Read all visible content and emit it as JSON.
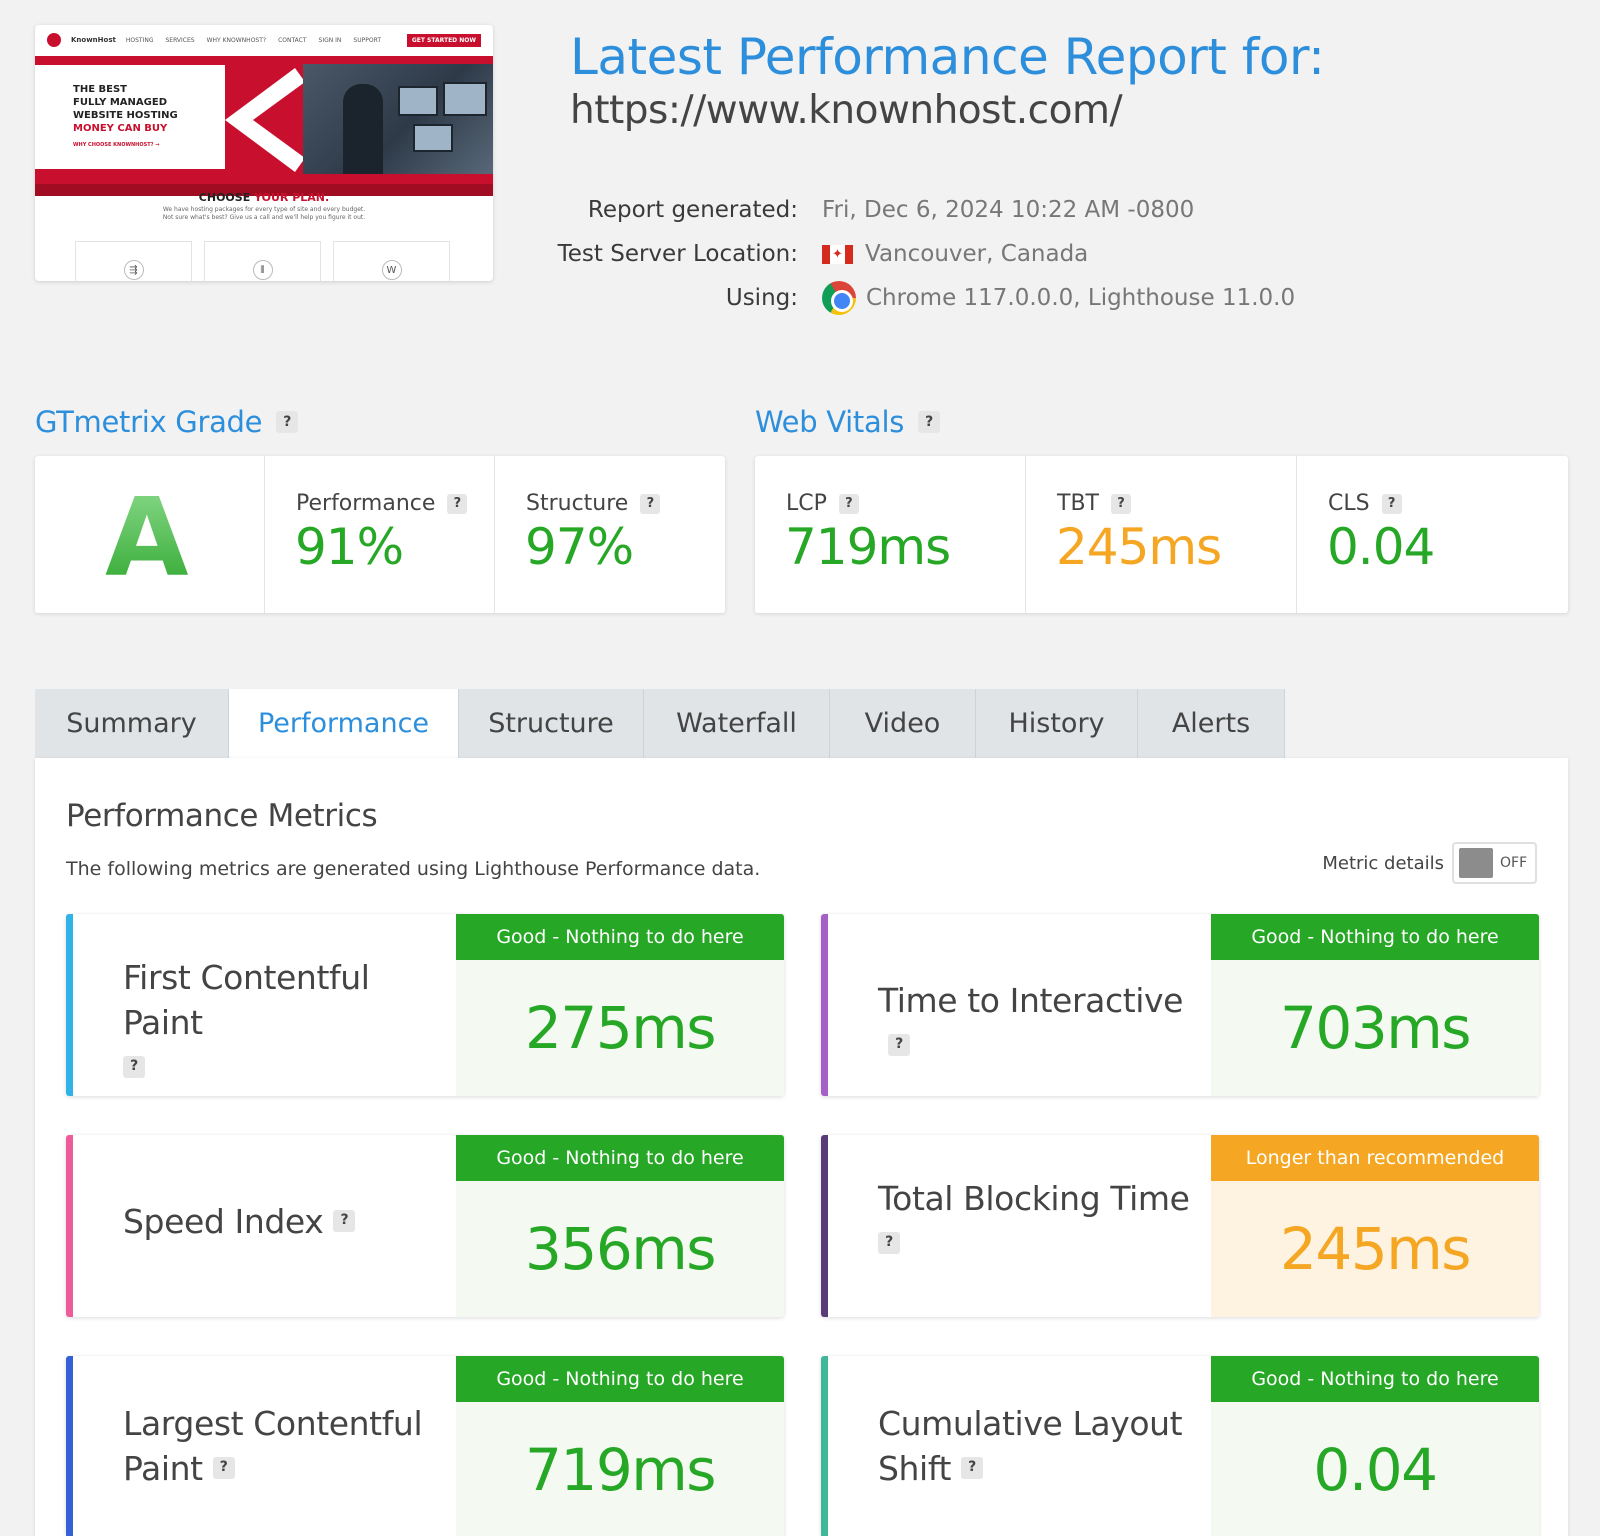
{
  "thumbnail": {
    "brand": "KnownHost",
    "nav_links": [
      "HOSTING",
      "SERVICES",
      "WHY KNOWNHOST?",
      "CONTACT",
      "SIGN IN",
      "SUPPORT"
    ],
    "cta": "GET STARTED NOW",
    "hero_lines": [
      "THE BEST",
      "FULLY MANAGED",
      "WEBSITE HOSTING",
      "MONEY CAN BUY"
    ],
    "hero_link": "WHY CHOOSE KNOWNHOST? →",
    "choose_prefix": "CHOOSE",
    "choose_highlight": "YOUR PLAN.",
    "sub_line1": "We have hosting packages for every type of site and every budget.",
    "sub_line2": "Not sure what's best? Give us a call and we'll help you figure it out."
  },
  "header": {
    "title": "Latest Performance Report for:",
    "url": "https://www.knownhost.com/",
    "report_generated_label": "Report generated:",
    "report_generated_value": "Fri, Dec 6, 2024 10:22 AM -0800",
    "location_label": "Test Server Location:",
    "location_value": "Vancouver, Canada",
    "using_label": "Using:",
    "using_value": "Chrome 117.0.0.0, Lighthouse 11.0.0",
    "flag_icon": "canada-flag-icon",
    "browser_icon": "chrome-icon"
  },
  "grade": {
    "title": "GTmetrix Grade",
    "help": "?",
    "letter": "A",
    "performance_label": "Performance",
    "performance_value": "91%",
    "structure_label": "Structure",
    "structure_value": "97%"
  },
  "vitals": {
    "title": "Web Vitals",
    "help": "?",
    "lcp_label": "LCP",
    "lcp_value": "719ms",
    "tbt_label": "TBT",
    "tbt_value": "245ms",
    "cls_label": "CLS",
    "cls_value": "0.04"
  },
  "tabs": [
    {
      "label": "Summary",
      "active": false
    },
    {
      "label": "Performance",
      "active": true
    },
    {
      "label": "Structure",
      "active": false
    },
    {
      "label": "Waterfall",
      "active": false
    },
    {
      "label": "Video",
      "active": false
    },
    {
      "label": "History",
      "active": false
    },
    {
      "label": "Alerts",
      "active": false
    }
  ],
  "panel": {
    "title": "Performance Metrics",
    "description": "The following metrics are generated using Lighthouse Performance data.",
    "toggle_label": "Metric details",
    "toggle_state": "OFF"
  },
  "metrics": [
    {
      "name": "First Contentful Paint",
      "status": "Good - Nothing to do here",
      "value": "275ms",
      "accent": "#30b4e8",
      "level": "good"
    },
    {
      "name": "Time to Interactive",
      "status": "Good - Nothing to do here",
      "value": "703ms",
      "accent": "#a560c8",
      "level": "good"
    },
    {
      "name": "Speed Index",
      "status": "Good - Nothing to do here",
      "value": "356ms",
      "accent": "#ef5a98",
      "level": "good"
    },
    {
      "name": "Total Blocking Time",
      "status": "Longer than recommended",
      "value": "245ms",
      "accent": "#5b3a7a",
      "level": "warn"
    },
    {
      "name": "Largest Contentful Paint",
      "status": "Good - Nothing to do here",
      "value": "719ms",
      "accent": "#3561d8",
      "level": "good"
    },
    {
      "name": "Cumulative Layout Shift",
      "status": "Good - Nothing to do here",
      "value": "0.04",
      "accent": "#3fb89a",
      "level": "good"
    }
  ],
  "help_badge": "?",
  "colors": {
    "brand_blue": "#2d8fdc",
    "good_green": "#26a725",
    "warn_orange": "#f5a623"
  }
}
